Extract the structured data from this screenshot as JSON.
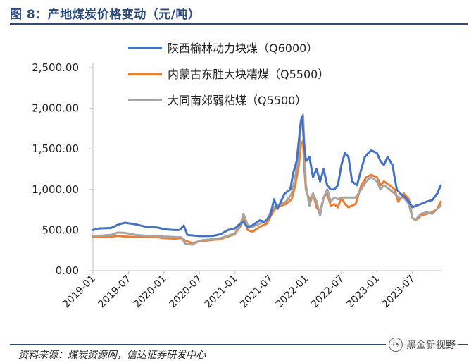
{
  "header": {
    "title": "图 8：产地煤炭价格变动（元/吨）"
  },
  "footer": {
    "source": "资料来源：煤炭资源网，信达证券研发中心",
    "watermark": "黑金新视野"
  },
  "chart_data": {
    "type": "line",
    "title": "产地煤炭价格变动（元/吨）",
    "xlabel": "",
    "ylabel": "",
    "ylim": [
      0,
      2500
    ],
    "y_ticks": [
      0,
      500,
      1000,
      1500,
      2000,
      2500
    ],
    "y_tick_labels": [
      "0.00",
      "500.00",
      "1,000.00",
      "1,500.00",
      "2,000.00",
      "2,500.00"
    ],
    "x_ticks": [
      "2019-01",
      "2019-07",
      "2020-01",
      "2020-07",
      "2021-01",
      "2021-07",
      "2022-01",
      "2022-07",
      "2023-01",
      "2023-07"
    ],
    "x_range": [
      2019.0,
      2023.92
    ],
    "legend_position": "top-center",
    "series": [
      {
        "name": "陕西榆林动力块煤（Q6000）",
        "color": "#4472C4",
        "points": [
          [
            2019.0,
            500
          ],
          [
            2019.08,
            520
          ],
          [
            2019.25,
            525
          ],
          [
            2019.38,
            575
          ],
          [
            2019.45,
            590
          ],
          [
            2019.6,
            570
          ],
          [
            2019.75,
            540
          ],
          [
            2019.92,
            530
          ],
          [
            2020.0,
            510
          ],
          [
            2020.15,
            500
          ],
          [
            2020.22,
            500
          ],
          [
            2020.28,
            555
          ],
          [
            2020.33,
            440
          ],
          [
            2020.45,
            430
          ],
          [
            2020.55,
            425
          ],
          [
            2020.7,
            430
          ],
          [
            2020.8,
            450
          ],
          [
            2020.9,
            500
          ],
          [
            2021.0,
            520
          ],
          [
            2021.05,
            560
          ],
          [
            2021.12,
            600
          ],
          [
            2021.18,
            530
          ],
          [
            2021.25,
            560
          ],
          [
            2021.35,
            620
          ],
          [
            2021.42,
            600
          ],
          [
            2021.5,
            680
          ],
          [
            2021.55,
            880
          ],
          [
            2021.6,
            760
          ],
          [
            2021.7,
            950
          ],
          [
            2021.78,
            1000
          ],
          [
            2021.82,
            1200
          ],
          [
            2021.87,
            1350
          ],
          [
            2021.9,
            1600
          ],
          [
            2021.93,
            1850
          ],
          [
            2021.95,
            1900
          ],
          [
            2021.97,
            1600
          ],
          [
            2022.0,
            1350
          ],
          [
            2022.05,
            1400
          ],
          [
            2022.1,
            1150
          ],
          [
            2022.15,
            1250
          ],
          [
            2022.2,
            1100
          ],
          [
            2022.25,
            1250
          ],
          [
            2022.3,
            1050
          ],
          [
            2022.35,
            1000
          ],
          [
            2022.4,
            1000
          ],
          [
            2022.45,
            1050
          ],
          [
            2022.5,
            1300
          ],
          [
            2022.55,
            1450
          ],
          [
            2022.6,
            1400
          ],
          [
            2022.65,
            1100
          ],
          [
            2022.72,
            1050
          ],
          [
            2022.78,
            1250
          ],
          [
            2022.83,
            1400
          ],
          [
            2022.88,
            1450
          ],
          [
            2022.92,
            1480
          ],
          [
            2023.0,
            1450
          ],
          [
            2023.05,
            1350
          ],
          [
            2023.1,
            1300
          ],
          [
            2023.15,
            1400
          ],
          [
            2023.22,
            1300
          ],
          [
            2023.28,
            1000
          ],
          [
            2023.33,
            950
          ],
          [
            2023.4,
            900
          ],
          [
            2023.45,
            850
          ],
          [
            2023.5,
            780
          ],
          [
            2023.55,
            800
          ],
          [
            2023.62,
            820
          ],
          [
            2023.7,
            850
          ],
          [
            2023.78,
            870
          ],
          [
            2023.85,
            950
          ],
          [
            2023.9,
            1050
          ]
        ]
      },
      {
        "name": "内蒙古东胜大块精煤（Q5500）",
        "color": "#ED7D31",
        "points": [
          [
            2019.0,
            420
          ],
          [
            2019.08,
            415
          ],
          [
            2019.25,
            415
          ],
          [
            2019.35,
            430
          ],
          [
            2019.45,
            420
          ],
          [
            2019.6,
            415
          ],
          [
            2019.75,
            415
          ],
          [
            2019.92,
            410
          ],
          [
            2020.0,
            400
          ],
          [
            2020.15,
            395
          ],
          [
            2020.25,
            400
          ],
          [
            2020.3,
            370
          ],
          [
            2020.4,
            340
          ],
          [
            2020.5,
            360
          ],
          [
            2020.6,
            370
          ],
          [
            2020.7,
            380
          ],
          [
            2020.8,
            390
          ],
          [
            2020.9,
            420
          ],
          [
            2021.0,
            450
          ],
          [
            2021.08,
            550
          ],
          [
            2021.12,
            650
          ],
          [
            2021.18,
            500
          ],
          [
            2021.25,
            480
          ],
          [
            2021.35,
            540
          ],
          [
            2021.45,
            580
          ],
          [
            2021.52,
            700
          ],
          [
            2021.58,
            780
          ],
          [
            2021.65,
            800
          ],
          [
            2021.72,
            820
          ],
          [
            2021.8,
            880
          ],
          [
            2021.85,
            1050
          ],
          [
            2021.9,
            1300
          ],
          [
            2021.93,
            1550
          ],
          [
            2021.96,
            1600
          ],
          [
            2021.98,
            1250
          ],
          [
            2022.0,
            1000
          ],
          [
            2022.05,
            870
          ],
          [
            2022.1,
            950
          ],
          [
            2022.15,
            780
          ],
          [
            2022.2,
            720
          ],
          [
            2022.25,
            900
          ],
          [
            2022.3,
            950
          ],
          [
            2022.35,
            800
          ],
          [
            2022.4,
            820
          ],
          [
            2022.45,
            780
          ],
          [
            2022.5,
            900
          ],
          [
            2022.55,
            820
          ],
          [
            2022.6,
            780
          ],
          [
            2022.7,
            820
          ],
          [
            2022.78,
            1050
          ],
          [
            2022.85,
            1150
          ],
          [
            2022.92,
            1180
          ],
          [
            2023.0,
            1150
          ],
          [
            2023.05,
            1050
          ],
          [
            2023.1,
            1100
          ],
          [
            2023.18,
            1050
          ],
          [
            2023.25,
            1000
          ],
          [
            2023.3,
            850
          ],
          [
            2023.38,
            950
          ],
          [
            2023.45,
            880
          ],
          [
            2023.5,
            650
          ],
          [
            2023.55,
            620
          ],
          [
            2023.62,
            680
          ],
          [
            2023.7,
            700
          ],
          [
            2023.78,
            720
          ],
          [
            2023.85,
            760
          ],
          [
            2023.9,
            850
          ]
        ]
      },
      {
        "name": "大同南郊弱粘煤（Q5500）",
        "color": "#A5A5A5",
        "points": [
          [
            2019.0,
            430
          ],
          [
            2019.08,
            430
          ],
          [
            2019.25,
            440
          ],
          [
            2019.35,
            470
          ],
          [
            2019.45,
            465
          ],
          [
            2019.6,
            440
          ],
          [
            2019.75,
            430
          ],
          [
            2019.92,
            425
          ],
          [
            2020.0,
            420
          ],
          [
            2020.15,
            415
          ],
          [
            2020.25,
            410
          ],
          [
            2020.3,
            330
          ],
          [
            2020.4,
            320
          ],
          [
            2020.5,
            370
          ],
          [
            2020.6,
            380
          ],
          [
            2020.7,
            390
          ],
          [
            2020.8,
            400
          ],
          [
            2020.9,
            430
          ],
          [
            2021.0,
            460
          ],
          [
            2021.08,
            580
          ],
          [
            2021.12,
            700
          ],
          [
            2021.18,
            560
          ],
          [
            2021.25,
            540
          ],
          [
            2021.35,
            580
          ],
          [
            2021.45,
            620
          ],
          [
            2021.52,
            760
          ],
          [
            2021.58,
            800
          ],
          [
            2021.65,
            820
          ],
          [
            2021.72,
            850
          ],
          [
            2021.8,
            950
          ],
          [
            2021.85,
            1150
          ],
          [
            2021.9,
            1450
          ],
          [
            2021.93,
            1800
          ],
          [
            2021.96,
            1920
          ],
          [
            2021.98,
            1500
          ],
          [
            2022.0,
            1050
          ],
          [
            2022.05,
            800
          ],
          [
            2022.1,
            950
          ],
          [
            2022.15,
            850
          ],
          [
            2022.2,
            680
          ],
          [
            2022.25,
            900
          ],
          [
            2022.3,
            1000
          ],
          [
            2022.35,
            850
          ],
          [
            2022.4,
            900
          ],
          [
            2022.45,
            880
          ],
          [
            2022.5,
            900
          ],
          [
            2022.55,
            900
          ],
          [
            2022.6,
            900
          ],
          [
            2022.7,
            900
          ],
          [
            2022.78,
            1000
          ],
          [
            2022.85,
            1100
          ],
          [
            2022.92,
            1150
          ],
          [
            2023.0,
            1100
          ],
          [
            2023.05,
            1000
          ],
          [
            2023.1,
            1050
          ],
          [
            2023.18,
            1000
          ],
          [
            2023.25,
            950
          ],
          [
            2023.3,
            900
          ],
          [
            2023.38,
            900
          ],
          [
            2023.45,
            820
          ],
          [
            2023.5,
            650
          ],
          [
            2023.55,
            630
          ],
          [
            2023.62,
            700
          ],
          [
            2023.7,
            720
          ],
          [
            2023.78,
            700
          ],
          [
            2023.85,
            760
          ],
          [
            2023.9,
            800
          ]
        ]
      }
    ]
  }
}
